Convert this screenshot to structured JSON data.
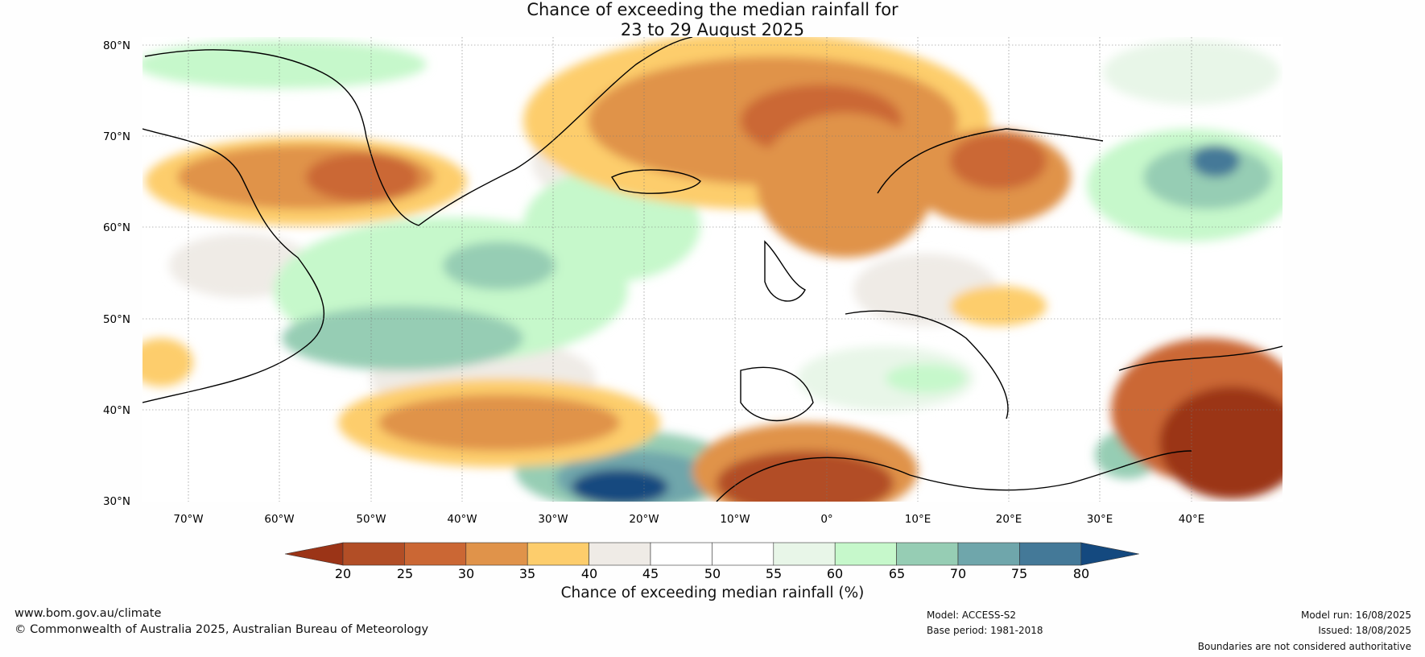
{
  "title": {
    "line1": "Chance of exceeding the median rainfall for",
    "line2": "23 to 29 August 2025"
  },
  "map": {
    "latitude_labels": [
      "80°N",
      "70°N",
      "60°N",
      "50°N",
      "40°N",
      "30°N"
    ],
    "longitude_labels": [
      "70°W",
      "60°W",
      "50°W",
      "40°W",
      "30°W",
      "20°W",
      "10°W",
      "0°",
      "10°E",
      "20°E",
      "30°E",
      "40°E"
    ],
    "extent": {
      "lon_min": -75,
      "lon_max": 50,
      "lat_min": 30,
      "lat_max": 81
    },
    "gridlines": true
  },
  "colorbar": {
    "title": "Chance of exceeding median rainfall (%)",
    "tick_labels": [
      "20",
      "25",
      "30",
      "35",
      "40",
      "45",
      "50",
      "55",
      "60",
      "65",
      "70",
      "75",
      "80"
    ],
    "colors": [
      "#9b3417",
      "#b24e26",
      "#cb6734",
      "#e0934a",
      "#fdcd6c",
      "#efebe6",
      "#ffffff",
      "#ffffff",
      "#e8f6e8",
      "#c6f8cb",
      "#96cdb4",
      "#6fa6ab",
      "#447998",
      "#14497f"
    ],
    "extend": "both"
  },
  "footer": {
    "website": "www.bom.gov.au/climate",
    "copyright": "© Commonwealth of Australia 2025, Australian Bureau of Meteorology",
    "model": "Model: ACCESS-S2",
    "base_period": "Base period: 1981-2018",
    "model_run": "Model run: 16/08/2025",
    "issued": "Issued: 18/08/2025",
    "disclaimer": "Boundaries are not considered authoritative"
  }
}
